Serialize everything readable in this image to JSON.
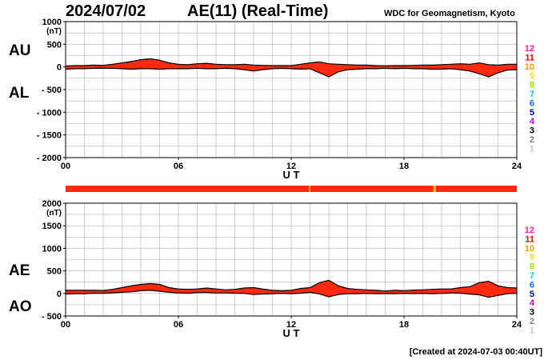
{
  "header": {
    "date": "2024/07/02",
    "title": "AE(11) (Real-Time)",
    "source": "WDC for Geomagnetism, Kyoto"
  },
  "footer": {
    "created": "[Created at 2024-07-03 00:40UT]"
  },
  "colors": {
    "fill": "#ff2a10",
    "outline": "#000000",
    "grid": "#b0b0b0",
    "status_red": "#ff2a10",
    "status_orange": "#ffb020"
  },
  "station_count_legend": [
    {
      "label": "12",
      "color": "#ff1fa0"
    },
    {
      "label": "11",
      "color": "#ff0000"
    },
    {
      "label": "10",
      "color": "#ff9900"
    },
    {
      "label": "9",
      "color": "#ffe000"
    },
    {
      "label": "8",
      "color": "#a0e000"
    },
    {
      "label": "7",
      "color": "#00d0d0"
    },
    {
      "label": "6",
      "color": "#0070ff"
    },
    {
      "label": "5",
      "color": "#0000c0"
    },
    {
      "label": "4",
      "color": "#d000d0"
    },
    {
      "label": "3",
      "color": "#000000"
    },
    {
      "label": "2",
      "color": "#808080"
    },
    {
      "label": "1",
      "color": "#c8c8c8"
    }
  ],
  "status_bar": {
    "orange_segments": [
      [
        12.95,
        13.02
      ],
      [
        19.55,
        19.7
      ]
    ]
  },
  "chart_data": [
    {
      "type": "area",
      "name": "AU/AL panel",
      "xlabel": "U T",
      "unit_label": "(nT)",
      "label_upper": "AU",
      "label_lower": "AL",
      "xlim": [
        0,
        24
      ],
      "ylim": [
        -2000,
        1000
      ],
      "x_ticks": [
        "00",
        "06",
        "12",
        "18",
        "24"
      ],
      "x_tick_values": [
        0,
        6,
        12,
        18,
        24
      ],
      "y_ticks": [
        1000,
        500,
        0,
        -500,
        -1000,
        -1500,
        -2000
      ],
      "y_tick_labels": [
        "1000",
        "500",
        "0",
        "- 500",
        "- 1000",
        "- 1500",
        "- 2000"
      ],
      "grid": true,
      "x": [
        0,
        0.5,
        1,
        1.5,
        2,
        2.5,
        3,
        3.5,
        4,
        4.5,
        5,
        5.5,
        6,
        6.5,
        7,
        7.5,
        8,
        8.5,
        9,
        9.5,
        10,
        10.5,
        11,
        11.5,
        12,
        12.5,
        13,
        13.5,
        14,
        14.5,
        15,
        15.5,
        16,
        16.5,
        17,
        17.5,
        18,
        18.5,
        19,
        19.5,
        20,
        20.5,
        21,
        21.5,
        22,
        22.5,
        23,
        23.5,
        24
      ],
      "series": [
        {
          "name": "AU",
          "values": [
            20,
            30,
            30,
            40,
            35,
            60,
            90,
            120,
            160,
            180,
            150,
            90,
            60,
            50,
            70,
            80,
            60,
            50,
            50,
            60,
            40,
            35,
            30,
            30,
            30,
            60,
            90,
            110,
            70,
            60,
            50,
            40,
            40,
            30,
            25,
            30,
            30,
            35,
            40,
            40,
            50,
            60,
            70,
            60,
            90,
            50,
            40,
            60,
            60
          ]
        },
        {
          "name": "AL",
          "values": [
            -50,
            -40,
            -40,
            -30,
            -30,
            -30,
            -40,
            -50,
            -40,
            -40,
            -50,
            -40,
            -40,
            -40,
            -30,
            -40,
            -40,
            -30,
            -40,
            -60,
            -90,
            -60,
            -40,
            -30,
            -40,
            -50,
            -40,
            -130,
            -220,
            -110,
            -60,
            -50,
            -40,
            -40,
            -30,
            -40,
            -30,
            -40,
            -40,
            -50,
            -50,
            -40,
            -60,
            -90,
            -150,
            -220,
            -130,
            -70,
            -60
          ]
        }
      ]
    },
    {
      "type": "area",
      "name": "AE/AO panel",
      "xlabel": "U T",
      "unit_label": "(nT)",
      "label_upper": "AE",
      "label_lower": "AO",
      "xlim": [
        0,
        24
      ],
      "ylim": [
        -500,
        2000
      ],
      "x_ticks": [
        "00",
        "06",
        "12",
        "18",
        "24"
      ],
      "x_tick_values": [
        0,
        6,
        12,
        18,
        24
      ],
      "y_ticks": [
        2000,
        1500,
        1000,
        500,
        0,
        -500
      ],
      "y_tick_labels": [
        "2000",
        "1500",
        "1000",
        "500",
        "0",
        "- 500"
      ],
      "grid": true,
      "x": [
        0,
        0.5,
        1,
        1.5,
        2,
        2.5,
        3,
        3.5,
        4,
        4.5,
        5,
        5.5,
        6,
        6.5,
        7,
        7.5,
        8,
        8.5,
        9,
        9.5,
        10,
        10.5,
        11,
        11.5,
        12,
        12.5,
        13,
        13.5,
        14,
        14.5,
        15,
        15.5,
        16,
        16.5,
        17,
        17.5,
        18,
        18.5,
        19,
        19.5,
        20,
        20.5,
        21,
        21.5,
        22,
        22.5,
        23,
        23.5,
        24
      ],
      "series": [
        {
          "name": "AE",
          "values": [
            70,
            70,
            70,
            70,
            65,
            90,
            130,
            170,
            200,
            220,
            200,
            130,
            100,
            90,
            100,
            120,
            100,
            80,
            90,
            120,
            130,
            95,
            70,
            60,
            70,
            110,
            130,
            240,
            290,
            170,
            110,
            90,
            80,
            70,
            55,
            70,
            60,
            75,
            80,
            90,
            100,
            100,
            130,
            150,
            240,
            270,
            170,
            130,
            120
          ]
        },
        {
          "name": "AO",
          "values": [
            -15,
            -5,
            -5,
            5,
            3,
            15,
            25,
            35,
            60,
            70,
            50,
            25,
            10,
            5,
            20,
            20,
            10,
            10,
            5,
            0,
            -25,
            -12,
            -5,
            0,
            -5,
            5,
            25,
            -10,
            -75,
            -25,
            -5,
            -5,
            0,
            -5,
            -3,
            -5,
            0,
            -3,
            0,
            -5,
            0,
            10,
            5,
            -15,
            -30,
            -85,
            -45,
            -5,
            0
          ]
        }
      ]
    }
  ]
}
